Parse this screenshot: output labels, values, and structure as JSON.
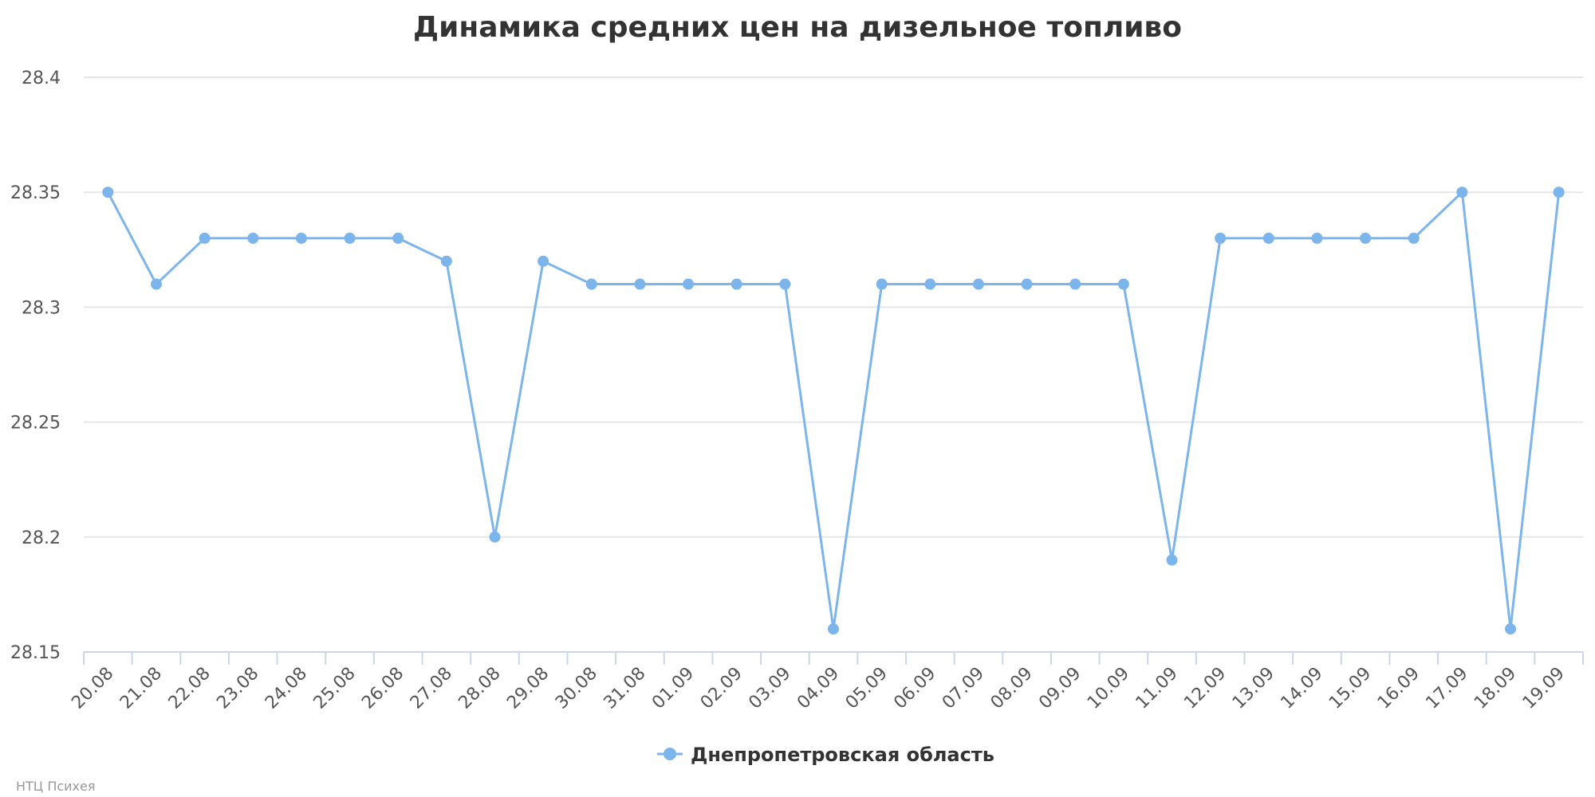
{
  "chart_data": {
    "type": "line",
    "title": "Динамика средних цен на дизельное топливо",
    "categories": [
      "20.08",
      "21.08",
      "22.08",
      "23.08",
      "24.08",
      "25.08",
      "26.08",
      "27.08",
      "28.08",
      "29.08",
      "30.08",
      "31.08",
      "01.09",
      "02.09",
      "03.09",
      "04.09",
      "05.09",
      "06.09",
      "07.09",
      "08.09",
      "09.09",
      "10.09",
      "11.09",
      "12.09",
      "13.09",
      "14.09",
      "15.09",
      "16.09",
      "17.09",
      "18.09",
      "19.09"
    ],
    "series": [
      {
        "name": "Днепропетровская область",
        "color": "#7cb5ec",
        "values": [
          28.35,
          28.31,
          28.33,
          28.33,
          28.33,
          28.33,
          28.33,
          28.32,
          28.2,
          28.32,
          28.31,
          28.31,
          28.31,
          28.31,
          28.31,
          28.16,
          28.31,
          28.31,
          28.31,
          28.31,
          28.31,
          28.31,
          28.19,
          28.33,
          28.33,
          28.33,
          28.33,
          28.33,
          28.35,
          28.16,
          28.35
        ]
      }
    ],
    "y_ticks": [
      "28.15",
      "28.2",
      "28.25",
      "28.3",
      "28.35",
      "28.4"
    ],
    "ylim": [
      28.15,
      28.4
    ],
    "grid": true,
    "legend_position": "bottom-center",
    "xlabel": "",
    "ylabel": ""
  },
  "credits": "НТЦ Психея"
}
